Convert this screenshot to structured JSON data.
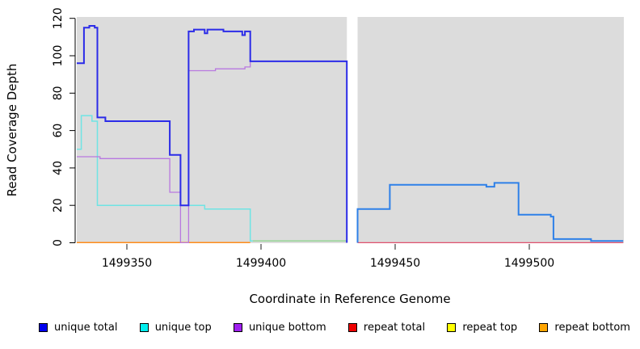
{
  "chart_data": {
    "type": "line",
    "step": true,
    "title": "",
    "xlabel": "Coordinate in Reference Genome",
    "ylabel": "Read Coverage Depth",
    "xlim": [
      1499331,
      1499535
    ],
    "ylim": [
      0,
      120
    ],
    "x_ticks": [
      1499350,
      1499400,
      1499450,
      1499500
    ],
    "y_ticks": [
      0,
      20,
      40,
      60,
      80,
      100,
      120
    ],
    "grid": false,
    "plot_bg": "#DCDCDC",
    "gap_region": {
      "x_start": 1499432,
      "x_end": 1499436,
      "color": "#FFFFFF"
    },
    "legend_position": "bottom",
    "legend": {
      "entries": [
        {
          "label": "unique total",
          "color": "#0000EE"
        },
        {
          "label": "unique top",
          "color": "#00EEEE"
        },
        {
          "label": "unique bottom",
          "color": "#A020F0"
        },
        {
          "label": "repeat total",
          "color": "#EE0000"
        },
        {
          "label": "repeat top",
          "color": "#FFFF00"
        },
        {
          "label": "repeat bottom",
          "color": "#FFA500"
        }
      ]
    },
    "series": [
      {
        "name": "repeat bottom (zero line, left of gap)",
        "color": "#FF8C1A",
        "width": 2,
        "points": [
          [
            1499331,
            0
          ],
          [
            1499396,
            0
          ]
        ]
      },
      {
        "name": "low coverage overlap (green, before gap)",
        "color": "#8FD48F",
        "width": 1.4,
        "points": [
          [
            1499397,
            1
          ],
          [
            1499432,
            1
          ]
        ]
      },
      {
        "name": "repeat total/top/bottom (zero line, right of gap)",
        "color": "#E0506E",
        "width": 1.6,
        "points": [
          [
            1499436,
            0
          ],
          [
            1499535,
            0
          ]
        ]
      },
      {
        "name": "unique top",
        "color": "#6FE4E4",
        "width": 1.5,
        "points": [
          [
            1499331,
            50
          ],
          [
            1499333,
            50
          ],
          [
            1499333,
            68
          ],
          [
            1499337,
            68
          ],
          [
            1499337,
            65
          ],
          [
            1499339,
            65
          ],
          [
            1499339,
            20
          ],
          [
            1499379,
            20
          ],
          [
            1499379,
            18
          ],
          [
            1499396,
            18
          ],
          [
            1499396,
            1
          ],
          [
            1499397,
            1
          ]
        ]
      },
      {
        "name": "unique bottom",
        "color": "#B878E0",
        "width": 1.3,
        "points": [
          [
            1499331,
            46
          ],
          [
            1499340,
            46
          ],
          [
            1499340,
            45
          ],
          [
            1499366,
            45
          ],
          [
            1499366,
            27
          ],
          [
            1499370,
            27
          ],
          [
            1499370,
            0
          ],
          [
            1499373,
            0
          ],
          [
            1499373,
            92
          ],
          [
            1499383,
            92
          ],
          [
            1499383,
            93
          ],
          [
            1499394,
            93
          ],
          [
            1499394,
            94
          ],
          [
            1499396,
            94
          ],
          [
            1499396,
            97
          ],
          [
            1499432,
            97
          ],
          [
            1499432,
            0
          ]
        ]
      },
      {
        "name": "unique total",
        "color": "#2B2BE8",
        "width": 2,
        "points": [
          [
            1499331,
            96
          ],
          [
            1499334,
            96
          ],
          [
            1499334,
            115
          ],
          [
            1499336,
            115
          ],
          [
            1499336,
            116
          ],
          [
            1499338,
            116
          ],
          [
            1499338,
            115
          ],
          [
            1499339,
            115
          ],
          [
            1499339,
            67
          ],
          [
            1499342,
            67
          ],
          [
            1499342,
            65
          ],
          [
            1499366,
            65
          ],
          [
            1499366,
            47
          ],
          [
            1499370,
            47
          ],
          [
            1499370,
            20
          ],
          [
            1499373,
            20
          ],
          [
            1499373,
            113
          ],
          [
            1499375,
            113
          ],
          [
            1499375,
            114
          ],
          [
            1499379,
            114
          ],
          [
            1499379,
            112
          ],
          [
            1499380,
            112
          ],
          [
            1499380,
            114
          ],
          [
            1499386,
            114
          ],
          [
            1499386,
            113
          ],
          [
            1499393,
            113
          ],
          [
            1499393,
            111
          ],
          [
            1499394,
            111
          ],
          [
            1499394,
            113
          ],
          [
            1499396,
            113
          ],
          [
            1499396,
            97
          ],
          [
            1499432,
            97
          ],
          [
            1499432,
            0
          ]
        ]
      },
      {
        "name": "unique total + unique top overlap (right of gap)",
        "color": "#2E80E8",
        "width": 2,
        "points": [
          [
            1499436,
            0
          ],
          [
            1499436,
            18
          ],
          [
            1499448,
            18
          ],
          [
            1499448,
            31
          ],
          [
            1499484,
            31
          ],
          [
            1499484,
            30
          ],
          [
            1499487,
            30
          ],
          [
            1499487,
            32
          ],
          [
            1499496,
            32
          ],
          [
            1499496,
            15
          ],
          [
            1499508,
            15
          ],
          [
            1499508,
            14
          ],
          [
            1499509,
            14
          ],
          [
            1499509,
            2
          ],
          [
            1499523,
            2
          ],
          [
            1499523,
            1
          ],
          [
            1499535,
            1
          ]
        ]
      }
    ]
  }
}
